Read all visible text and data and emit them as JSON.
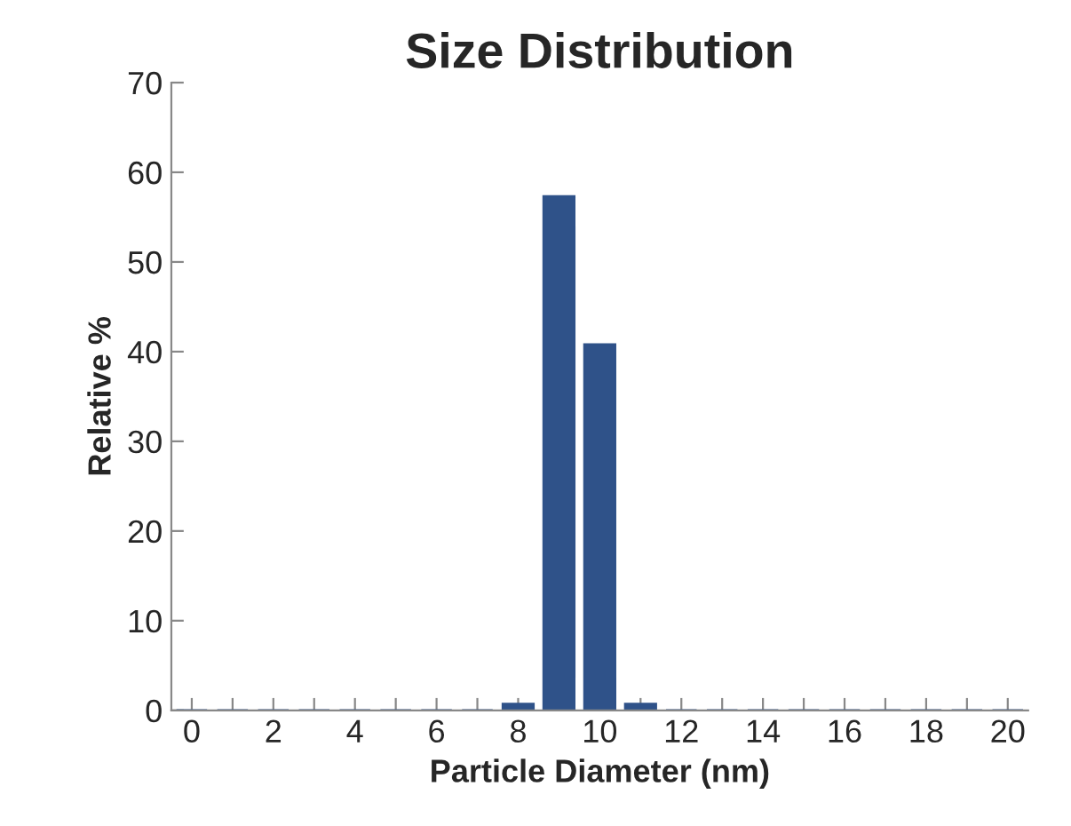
{
  "chart_data": {
    "type": "bar",
    "title": "Size Distribution",
    "xlabel": "Particle Diameter (nm)",
    "ylabel": "Relative %",
    "categories": [
      "0",
      null,
      "2",
      null,
      "4",
      null,
      "6",
      null,
      "8",
      null,
      "10",
      null,
      "12",
      null,
      "14",
      null,
      "16",
      null,
      "18",
      null,
      "20"
    ],
    "values": [
      0,
      0,
      0,
      0,
      0,
      0,
      0,
      0,
      0.7,
      57.3,
      40.8,
      0.7,
      0,
      0,
      0,
      0,
      0,
      0,
      0,
      0,
      0
    ],
    "color": "#2f5289",
    "ylim": [
      0,
      70
    ],
    "yticks": [
      0,
      10,
      20,
      30,
      40,
      50,
      60,
      70
    ],
    "grid": false,
    "legend": false
  }
}
